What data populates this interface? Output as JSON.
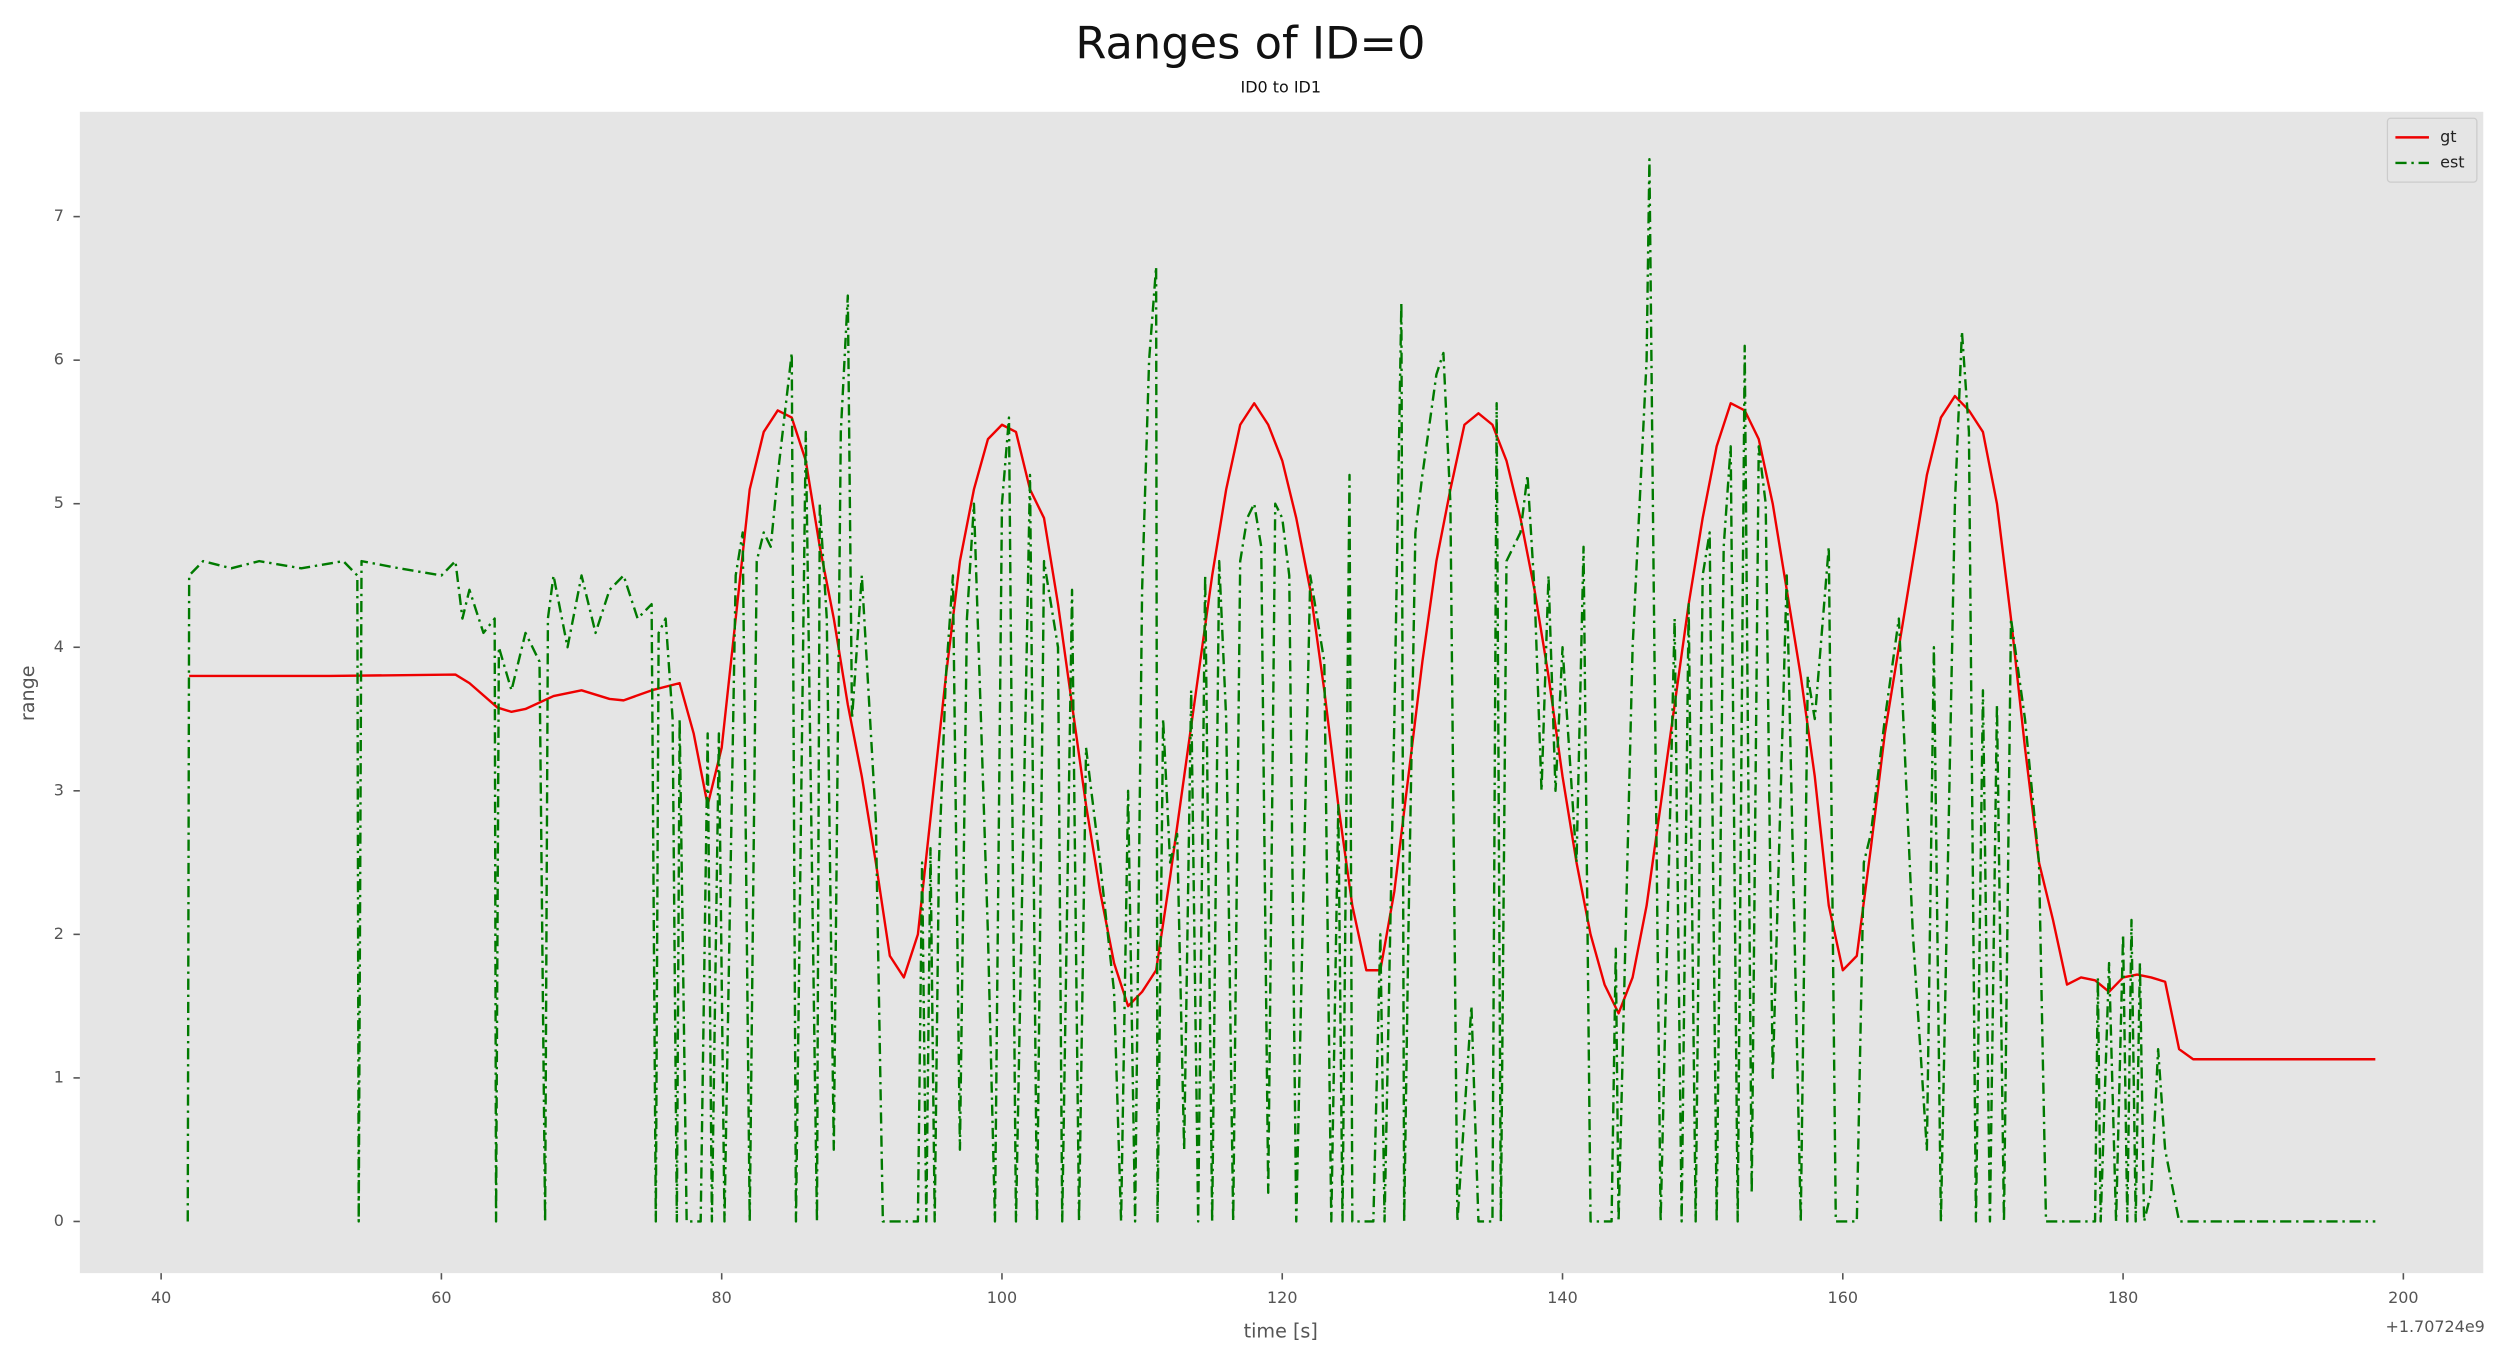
{
  "chart_data": {
    "type": "line",
    "title": "Ranges of ID=0",
    "subtitle": "ID0 to ID1",
    "x_label": "time [s]",
    "y_label": "range",
    "x_offset_label": "+1.70724e9",
    "xlim": [
      34.2,
      205.7
    ],
    "ylim": [
      -0.36,
      7.73
    ],
    "xticks": [
      40,
      60,
      80,
      100,
      120,
      140,
      160,
      180,
      200
    ],
    "yticks": [
      0,
      1,
      2,
      3,
      4,
      5,
      6,
      7
    ],
    "grid": false,
    "legend": "upper right",
    "series": [
      {
        "name": "gt",
        "color": "#ee0000",
        "linestyle": "-",
        "x": [
          42,
          52,
          61,
          62,
          64,
          65,
          66,
          68,
          70,
          72,
          73,
          75,
          77,
          78,
          79,
          80,
          81,
          82,
          83,
          84,
          85,
          86,
          87,
          88,
          89,
          90,
          91,
          92,
          93,
          94,
          95,
          96,
          97,
          98,
          99,
          100,
          101,
          102,
          103,
          104,
          105,
          106,
          107,
          108,
          109,
          110,
          111,
          112,
          113,
          114,
          115,
          116,
          117,
          118,
          119,
          120,
          121,
          122,
          123,
          124,
          125,
          126,
          127,
          128,
          129,
          130,
          131,
          132,
          133,
          134,
          135,
          136,
          137,
          138,
          139,
          140,
          141,
          142,
          143,
          144,
          145,
          146,
          147,
          148,
          149,
          150,
          151,
          152,
          153,
          154,
          155,
          156,
          157,
          158,
          159,
          160,
          161,
          162,
          163,
          164,
          165,
          166,
          167,
          168,
          169,
          170,
          171,
          172,
          173,
          174,
          175,
          176,
          177,
          178,
          179,
          180,
          181,
          182,
          183,
          184,
          185,
          198
        ],
        "values": [
          3.8,
          3.8,
          3.81,
          3.75,
          3.58,
          3.55,
          3.57,
          3.66,
          3.7,
          3.64,
          3.63,
          3.7,
          3.75,
          3.4,
          2.9,
          3.3,
          4.2,
          5.1,
          5.5,
          5.65,
          5.6,
          5.3,
          4.7,
          4.2,
          3.6,
          3.1,
          2.5,
          1.85,
          1.7,
          2.0,
          2.9,
          3.8,
          4.6,
          5.1,
          5.45,
          5.55,
          5.5,
          5.1,
          4.9,
          4.3,
          3.6,
          2.9,
          2.3,
          1.8,
          1.5,
          1.6,
          1.75,
          2.4,
          3.1,
          3.8,
          4.5,
          5.1,
          5.55,
          5.7,
          5.55,
          5.3,
          4.9,
          4.4,
          3.7,
          2.9,
          2.2,
          1.75,
          1.75,
          2.3,
          3.1,
          3.9,
          4.6,
          5.1,
          5.55,
          5.63,
          5.55,
          5.3,
          4.9,
          4.4,
          3.8,
          3.1,
          2.5,
          2.0,
          1.65,
          1.45,
          1.7,
          2.2,
          2.9,
          3.6,
          4.3,
          4.9,
          5.4,
          5.7,
          5.65,
          5.45,
          5.0,
          4.4,
          3.8,
          3.1,
          2.2,
          1.75,
          1.85,
          2.6,
          3.4,
          4.0,
          4.6,
          5.2,
          5.6,
          5.75,
          5.65,
          5.5,
          5.0,
          4.2,
          3.3,
          2.5,
          2.1,
          1.65,
          1.7,
          1.68,
          1.6,
          1.7,
          1.72,
          1.7,
          1.67,
          1.2,
          1.13,
          1.13
        ]
      },
      {
        "name": "est",
        "color": "#007a00",
        "linestyle": "-.",
        "x": [
          41.9,
          42,
          43,
          45,
          47,
          50,
          53,
          54,
          54.1,
          54.3,
          57,
          60,
          61,
          61.5,
          62,
          63,
          63.8,
          63.9,
          64.1,
          65,
          66,
          67,
          67.4,
          67.6,
          68,
          69,
          70,
          71,
          72,
          73,
          74,
          75,
          75.3,
          75.5,
          76,
          76.5,
          76.8,
          77,
          77.5,
          78.5,
          79,
          79.3,
          79.8,
          80.2,
          81,
          81.5,
          82,
          82.5,
          83,
          83.5,
          84,
          85,
          85.3,
          86,
          86.8,
          87,
          87.5,
          88,
          88.5,
          89,
          89.3,
          90,
          91,
          91.5,
          94,
          94.3,
          94.6,
          94.9,
          95.2,
          95.5,
          96,
          96.5,
          97,
          97.5,
          98,
          99,
          99.5,
          100,
          100.5,
          101,
          102,
          102.5,
          103,
          104,
          104.3,
          105,
          105.5,
          106,
          107,
          108,
          108.5,
          109,
          109.5,
          110,
          110.5,
          111,
          111.1,
          111.5,
          112,
          112.5,
          113,
          113.5,
          114,
          114.5,
          115,
          115.5,
          116,
          116.5,
          117,
          117.5,
          118,
          118.5,
          119,
          119.5,
          120,
          120.5,
          121,
          122,
          123,
          123.5,
          124,
          124.3,
          124.8,
          125,
          126.5,
          127,
          127.3,
          128,
          128.5,
          128.7,
          129,
          129.5,
          130,
          131,
          131.5,
          132,
          132.5,
          133.5,
          134,
          135,
          135.3,
          135.6,
          136,
          137,
          137.5,
          138,
          138.5,
          139,
          139.5,
          140,
          141,
          141.5,
          142,
          143.5,
          143.8,
          144,
          145,
          146,
          146.2,
          146.5,
          147,
          148,
          148.5,
          149,
          149.5,
          150,
          150.5,
          151,
          151.5,
          152,
          152.5,
          153,
          153.5,
          154,
          154.5,
          155,
          156,
          157,
          157.5,
          158,
          159,
          159.5,
          161,
          161.5,
          162,
          163,
          164,
          165,
          166,
          166.5,
          167,
          168,
          168.5,
          169,
          169.5,
          170,
          170.5,
          171,
          171.5,
          172,
          173,
          174,
          174.5,
          178,
          178.2,
          178.4,
          179,
          179.5,
          180,
          180.3,
          180.6,
          180.9,
          181.2,
          181.5,
          182,
          182.5,
          183,
          184,
          198
        ],
        "values": [
          0,
          4.5,
          4.6,
          4.55,
          4.6,
          4.55,
          4.6,
          4.5,
          0,
          4.6,
          4.55,
          4.5,
          4.6,
          4.2,
          4.4,
          4.1,
          4.2,
          0,
          4.0,
          3.7,
          4.1,
          3.9,
          0,
          4.2,
          4.5,
          4.0,
          4.5,
          4.1,
          4.4,
          4.5,
          4.2,
          4.3,
          0,
          4.1,
          4.2,
          3.5,
          0,
          3.5,
          0,
          0,
          3.4,
          0,
          3.4,
          0,
          4.5,
          4.8,
          0,
          4.6,
          4.8,
          4.7,
          5.2,
          6.05,
          0,
          5.5,
          0,
          5.0,
          4.2,
          0.5,
          5.5,
          6.45,
          3.5,
          4.5,
          2.8,
          0,
          0,
          2.5,
          0,
          2.6,
          0,
          2.5,
          3.8,
          4.5,
          0.5,
          4.2,
          5.0,
          2.0,
          0,
          5.0,
          5.6,
          0,
          5.2,
          0,
          4.6,
          4.0,
          0,
          4.4,
          0,
          3.3,
          2.5,
          1.6,
          0,
          3.0,
          0,
          4.4,
          6.0,
          6.65,
          0,
          3.5,
          2.5,
          2.7,
          0.5,
          3.7,
          0,
          4.5,
          0,
          4.6,
          3.5,
          0,
          4.6,
          4.9,
          5.0,
          4.7,
          0.2,
          5.0,
          4.9,
          4.5,
          0,
          4.5,
          3.9,
          0,
          2.9,
          0,
          5.2,
          0,
          0,
          2.0,
          0,
          3.5,
          6.4,
          0,
          2.0,
          4.8,
          5.2,
          5.9,
          6.05,
          5.0,
          0,
          1.5,
          0,
          0,
          5.7,
          0,
          4.6,
          4.8,
          5.2,
          4.4,
          3.0,
          4.5,
          3.0,
          4.0,
          2.5,
          4.7,
          0,
          0,
          1.9,
          0,
          4.0,
          6.0,
          7.4,
          4.5,
          0,
          4.2,
          0,
          4.3,
          0,
          4.5,
          4.8,
          0,
          4.7,
          5.4,
          0,
          6.1,
          0.2,
          5.4,
          5.0,
          1.0,
          4.5,
          0,
          3.8,
          3.5,
          4.7,
          0,
          0,
          2.5,
          2.7,
          3.5,
          4.2,
          2.0,
          0.5,
          4.0,
          0,
          5.0,
          6.2,
          5.5,
          0,
          3.7,
          0,
          3.6,
          0,
          4.2,
          3.5,
          2.5,
          0,
          0,
          1.7,
          0,
          1.8,
          0,
          2.0,
          0,
          2.1,
          0,
          1.8,
          0,
          0.2,
          1.2,
          0.5,
          0,
          0
        ]
      }
    ]
  }
}
